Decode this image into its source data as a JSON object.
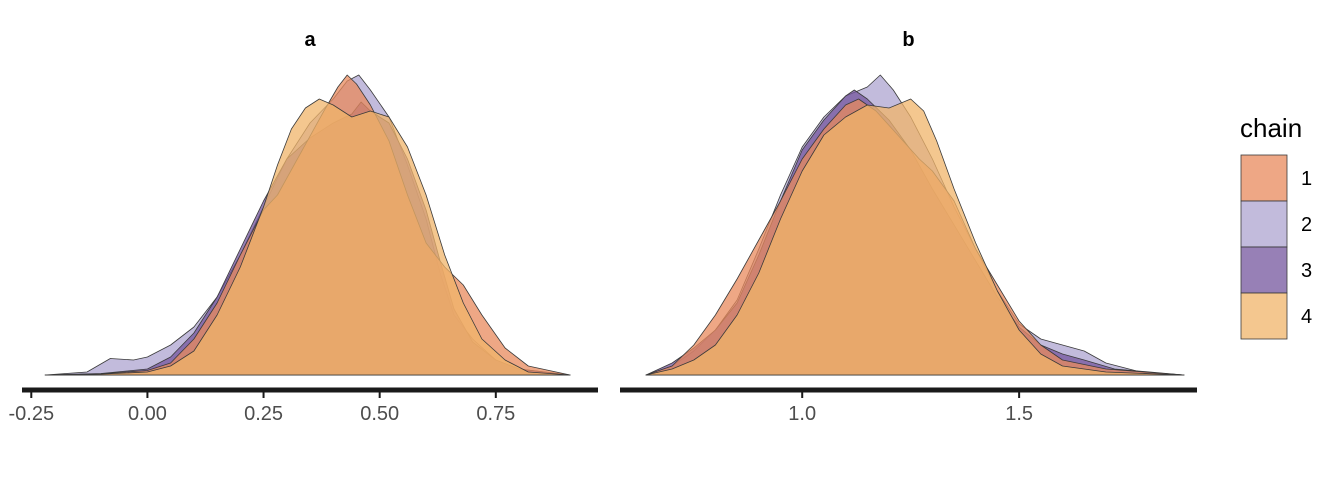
{
  "chart_data": {
    "type": "area",
    "chart_kind": "density overlay, faceted",
    "legend": {
      "title": "chain",
      "placement": "right",
      "entries": [
        "1",
        "2",
        "3",
        "4"
      ]
    },
    "colors": {
      "1": "#e8895c",
      "2": "#aea4d0",
      "3": "#74559e",
      "4": "#f0b46a",
      "outline": "#3a3a3a",
      "axis": "#1a1a1a"
    },
    "fill_opacity": 0.75,
    "panels": [
      {
        "title": "a",
        "xlim": [
          -0.27,
          0.97
        ],
        "ticks": [
          {
            "value": -0.25,
            "label": "-0.25"
          },
          {
            "value": 0.0,
            "label": "0.00"
          },
          {
            "value": 0.25,
            "label": "0.25"
          },
          {
            "value": 0.5,
            "label": "0.50"
          },
          {
            "value": 0.75,
            "label": "0.75"
          }
        ],
        "ymax": 1.0,
        "series": [
          {
            "name": "2",
            "points": [
              [
                -0.22,
                0.0
              ],
              [
                -0.13,
                0.01
              ],
              [
                -0.08,
                0.055
              ],
              [
                -0.03,
                0.05
              ],
              [
                0.0,
                0.06
              ],
              [
                0.05,
                0.1
              ],
              [
                0.1,
                0.16
              ],
              [
                0.15,
                0.26
              ],
              [
                0.2,
                0.4
              ],
              [
                0.25,
                0.56
              ],
              [
                0.3,
                0.72
              ],
              [
                0.35,
                0.84
              ],
              [
                0.4,
                0.92
              ],
              [
                0.43,
                0.98
              ],
              [
                0.455,
                1.0
              ],
              [
                0.48,
                0.95
              ],
              [
                0.52,
                0.86
              ],
              [
                0.56,
                0.7
              ],
              [
                0.6,
                0.52
              ],
              [
                0.63,
                0.34
              ],
              [
                0.66,
                0.2
              ],
              [
                0.7,
                0.12
              ],
              [
                0.75,
                0.05
              ],
              [
                0.8,
                0.02
              ],
              [
                0.91,
                0.0
              ]
            ]
          },
          {
            "name": "3",
            "points": [
              [
                -0.22,
                0.0
              ],
              [
                -0.1,
                0.005
              ],
              [
                0.0,
                0.02
              ],
              [
                0.05,
                0.06
              ],
              [
                0.1,
                0.14
              ],
              [
                0.15,
                0.26
              ],
              [
                0.2,
                0.42
              ],
              [
                0.25,
                0.58
              ],
              [
                0.3,
                0.72
              ],
              [
                0.35,
                0.79
              ],
              [
                0.4,
                0.84
              ],
              [
                0.44,
                0.87
              ],
              [
                0.46,
                0.91
              ],
              [
                0.48,
                0.88
              ],
              [
                0.52,
                0.84
              ],
              [
                0.56,
                0.72
              ],
              [
                0.6,
                0.55
              ],
              [
                0.63,
                0.38
              ],
              [
                0.66,
                0.22
              ],
              [
                0.7,
                0.11
              ],
              [
                0.75,
                0.05
              ],
              [
                0.8,
                0.02
              ],
              [
                0.91,
                0.0
              ]
            ]
          },
          {
            "name": "1",
            "points": [
              [
                -0.22,
                0.0
              ],
              [
                -0.1,
                0.004
              ],
              [
                0.0,
                0.015
              ],
              [
                0.05,
                0.04
              ],
              [
                0.1,
                0.12
              ],
              [
                0.15,
                0.24
              ],
              [
                0.2,
                0.4
              ],
              [
                0.25,
                0.55
              ],
              [
                0.28,
                0.6
              ],
              [
                0.33,
                0.74
              ],
              [
                0.38,
                0.88
              ],
              [
                0.41,
                0.96
              ],
              [
                0.43,
                1.0
              ],
              [
                0.45,
                0.97
              ],
              [
                0.48,
                0.9
              ],
              [
                0.52,
                0.78
              ],
              [
                0.56,
                0.6
              ],
              [
                0.6,
                0.44
              ],
              [
                0.64,
                0.36
              ],
              [
                0.68,
                0.3
              ],
              [
                0.72,
                0.2
              ],
              [
                0.77,
                0.09
              ],
              [
                0.82,
                0.03
              ],
              [
                0.91,
                0.0
              ]
            ]
          },
          {
            "name": "4",
            "points": [
              [
                -0.22,
                0.0
              ],
              [
                -0.1,
                0.003
              ],
              [
                0.0,
                0.01
              ],
              [
                0.05,
                0.03
              ],
              [
                0.1,
                0.08
              ],
              [
                0.15,
                0.2
              ],
              [
                0.2,
                0.36
              ],
              [
                0.25,
                0.56
              ],
              [
                0.28,
                0.7
              ],
              [
                0.31,
                0.82
              ],
              [
                0.34,
                0.89
              ],
              [
                0.37,
                0.92
              ],
              [
                0.4,
                0.9
              ],
              [
                0.44,
                0.86
              ],
              [
                0.48,
                0.88
              ],
              [
                0.52,
                0.86
              ],
              [
                0.56,
                0.76
              ],
              [
                0.6,
                0.6
              ],
              [
                0.64,
                0.4
              ],
              [
                0.68,
                0.24
              ],
              [
                0.72,
                0.12
              ],
              [
                0.77,
                0.05
              ],
              [
                0.82,
                0.01
              ],
              [
                0.91,
                0.0
              ]
            ]
          }
        ]
      },
      {
        "title": "b",
        "xlim": [
          0.58,
          1.91
        ],
        "ticks": [
          {
            "value": 1.0,
            "label": "1.0"
          },
          {
            "value": 1.5,
            "label": "1.5"
          }
        ],
        "ymax": 1.0,
        "series": [
          {
            "name": "2",
            "points": [
              [
                0.64,
                0.0
              ],
              [
                0.7,
                0.03
              ],
              [
                0.75,
                0.08
              ],
              [
                0.8,
                0.15
              ],
              [
                0.85,
                0.25
              ],
              [
                0.9,
                0.42
              ],
              [
                0.95,
                0.6
              ],
              [
                1.0,
                0.76
              ],
              [
                1.05,
                0.86
              ],
              [
                1.1,
                0.93
              ],
              [
                1.15,
                0.96
              ],
              [
                1.18,
                1.0
              ],
              [
                1.21,
                0.95
              ],
              [
                1.25,
                0.86
              ],
              [
                1.3,
                0.72
              ],
              [
                1.35,
                0.56
              ],
              [
                1.4,
                0.42
              ],
              [
                1.45,
                0.28
              ],
              [
                1.5,
                0.17
              ],
              [
                1.55,
                0.12
              ],
              [
                1.6,
                0.1
              ],
              [
                1.65,
                0.08
              ],
              [
                1.7,
                0.04
              ],
              [
                1.78,
                0.01
              ],
              [
                1.88,
                0.0
              ]
            ]
          },
          {
            "name": "3",
            "points": [
              [
                0.64,
                0.0
              ],
              [
                0.7,
                0.04
              ],
              [
                0.75,
                0.09
              ],
              [
                0.8,
                0.15
              ],
              [
                0.85,
                0.24
              ],
              [
                0.9,
                0.4
              ],
              [
                0.95,
                0.58
              ],
              [
                1.0,
                0.75
              ],
              [
                1.05,
                0.85
              ],
              [
                1.1,
                0.93
              ],
              [
                1.12,
                0.95
              ],
              [
                1.15,
                0.92
              ],
              [
                1.2,
                0.85
              ],
              [
                1.25,
                0.75
              ],
              [
                1.3,
                0.62
              ],
              [
                1.35,
                0.5
              ],
              [
                1.4,
                0.38
              ],
              [
                1.45,
                0.26
              ],
              [
                1.5,
                0.16
              ],
              [
                1.55,
                0.1
              ],
              [
                1.6,
                0.07
              ],
              [
                1.65,
                0.05
              ],
              [
                1.72,
                0.02
              ],
              [
                1.88,
                0.0
              ]
            ]
          },
          {
            "name": "1",
            "points": [
              [
                0.64,
                0.0
              ],
              [
                0.7,
                0.03
              ],
              [
                0.75,
                0.1
              ],
              [
                0.8,
                0.2
              ],
              [
                0.85,
                0.32
              ],
              [
                0.9,
                0.45
              ],
              [
                0.95,
                0.58
              ],
              [
                1.0,
                0.72
              ],
              [
                1.05,
                0.82
              ],
              [
                1.1,
                0.9
              ],
              [
                1.13,
                0.92
              ],
              [
                1.17,
                0.88
              ],
              [
                1.22,
                0.8
              ],
              [
                1.27,
                0.72
              ],
              [
                1.3,
                0.68
              ],
              [
                1.35,
                0.58
              ],
              [
                1.4,
                0.42
              ],
              [
                1.45,
                0.3
              ],
              [
                1.5,
                0.18
              ],
              [
                1.55,
                0.1
              ],
              [
                1.6,
                0.05
              ],
              [
                1.7,
                0.02
              ],
              [
                1.88,
                0.0
              ]
            ]
          },
          {
            "name": "4",
            "points": [
              [
                0.64,
                0.0
              ],
              [
                0.7,
                0.02
              ],
              [
                0.75,
                0.05
              ],
              [
                0.8,
                0.1
              ],
              [
                0.85,
                0.2
              ],
              [
                0.9,
                0.34
              ],
              [
                0.95,
                0.52
              ],
              [
                1.0,
                0.68
              ],
              [
                1.05,
                0.8
              ],
              [
                1.1,
                0.86
              ],
              [
                1.15,
                0.9
              ],
              [
                1.2,
                0.89
              ],
              [
                1.25,
                0.92
              ],
              [
                1.28,
                0.88
              ],
              [
                1.31,
                0.78
              ],
              [
                1.35,
                0.62
              ],
              [
                1.4,
                0.44
              ],
              [
                1.45,
                0.28
              ],
              [
                1.5,
                0.15
              ],
              [
                1.55,
                0.07
              ],
              [
                1.6,
                0.03
              ],
              [
                1.7,
                0.01
              ],
              [
                1.88,
                0.0
              ]
            ]
          }
        ]
      }
    ]
  }
}
